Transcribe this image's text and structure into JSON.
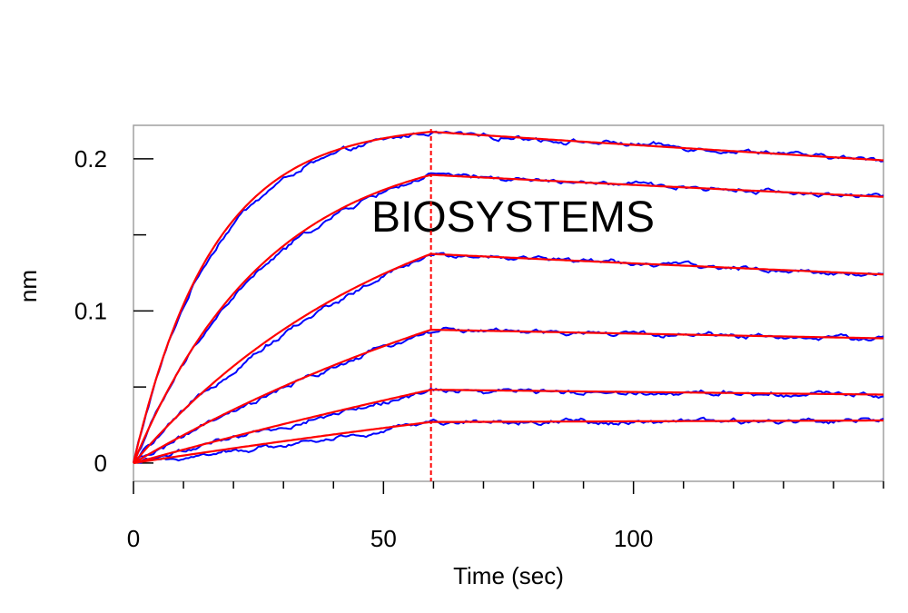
{
  "chart_data": {
    "type": "line",
    "title": "",
    "xlabel": "Time (sec)",
    "ylabel": "nm",
    "xlim": [
      0,
      150
    ],
    "ylim": [
      -0.012,
      0.222
    ],
    "x_ticks": [
      0,
      50,
      100
    ],
    "x_tick_labels": [
      "0",
      "50",
      "100"
    ],
    "x_minor_step": 10,
    "y_ticks": [
      0,
      0.1,
      0.2
    ],
    "y_tick_labels": [
      "0",
      "0.1",
      "0.2"
    ],
    "y_minor_ticks": [
      0.05,
      0.15
    ],
    "grid": false,
    "legend": "none",
    "vertical_marker": {
      "x": 59.5,
      "style": "dashed",
      "color": "#ff0000"
    },
    "watermark": "BIOSYSTEMS",
    "colors": {
      "measured": "#0000ff",
      "fit": "#ff0000"
    },
    "series": [
      {
        "curve": 1,
        "association_end_x": 59.5,
        "association_plateau": 0.223,
        "association_rate": 0.063,
        "end_value": 0.199
      },
      {
        "curve": 2,
        "association_end_x": 59.5,
        "association_plateau": 0.213,
        "association_rate": 0.037,
        "end_value": 0.175
      },
      {
        "curve": 3,
        "association_end_x": 59.5,
        "association_plateau": 0.206,
        "association_rate": 0.0185,
        "end_value": 0.124
      },
      {
        "curve": 4,
        "association_end_x": 59.5,
        "association_plateau": 0.203,
        "association_rate": 0.0095,
        "end_value": 0.082
      },
      {
        "curve": 5,
        "association_end_x": 59.5,
        "association_plateau": 0.25,
        "association_rate": 0.0036,
        "end_value": 0.045
      },
      {
        "curve": 6,
        "association_end_x": 59.5,
        "association_plateau": 0.14,
        "association_rate": 0.0036,
        "end_value": 0.028
      }
    ]
  }
}
